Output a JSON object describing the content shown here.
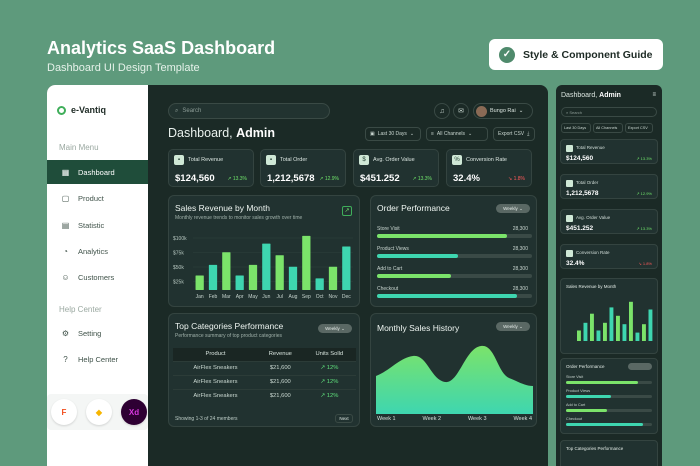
{
  "hero": {
    "title": "Analytics SaaS Dashboard",
    "subtitle": "Dashboard UI Design Template",
    "guide_button": "Style & Component Guide"
  },
  "sidebar": {
    "brand": "e-Vantiq",
    "main_menu_label": "Main Menu",
    "help_label": "Help Center",
    "items": [
      {
        "label": "Dashboard",
        "icon": "grid-icon",
        "active": true
      },
      {
        "label": "Product",
        "icon": "box-icon"
      },
      {
        "label": "Statistic",
        "icon": "chart-icon"
      },
      {
        "label": "Analytics",
        "icon": "analytics-icon"
      },
      {
        "label": "Customers",
        "icon": "user-icon"
      }
    ],
    "help_items": [
      {
        "label": "Setting",
        "icon": "gear-icon"
      },
      {
        "label": "Help Center",
        "icon": "help-icon"
      }
    ]
  },
  "header": {
    "search_placeholder": "Search",
    "user_name": "Bungo Rai",
    "title_prefix": "Dashboard,",
    "title_bold": "Admin",
    "filter_period": "Last 30 Days",
    "filter_channel": "All Channels",
    "export": "Export CSV"
  },
  "kpis": [
    {
      "label": "Total Revenue",
      "value": "$124,560",
      "delta": "↗ 13.3%",
      "up": true
    },
    {
      "label": "Total Order",
      "value": "1,212,5678",
      "delta": "↗ 12.9%",
      "up": true
    },
    {
      "label": "Avg. Order Value",
      "value": "$451.252",
      "delta": "↗ 13.3%",
      "up": true
    },
    {
      "label": "Conversion Rate",
      "value": "32.4%",
      "delta": "↘ 1.8%",
      "up": false
    }
  ],
  "sales_card": {
    "title": "Sales Revenue by Month",
    "subtitle": "Monthly revenue trends to monitor sales growth over time"
  },
  "order_card": {
    "title": "Order Performance",
    "pill": "Weekly",
    "rows": [
      {
        "label": "Store Visit",
        "value": "28,300",
        "pct": 0.84
      },
      {
        "label": "Product Views",
        "value": "28,300",
        "pct": 0.52
      },
      {
        "label": "Add to Cart",
        "value": "28,300",
        "pct": 0.48
      },
      {
        "label": "Checkout",
        "value": "28,300",
        "pct": 0.9
      }
    ]
  },
  "categories_card": {
    "title": "Top Categories Performance",
    "subtitle": "Performance summary of top product categories",
    "pill": "Weekly",
    "headers": [
      "Product",
      "Revenue",
      "Units Solld"
    ],
    "rows": [
      {
        "product": "AirFlex Sneakers",
        "revenue": "$21,600",
        "units": "↗ 12%"
      },
      {
        "product": "AirFlex Sneakers",
        "revenue": "$21,600",
        "units": "↗ 12%"
      },
      {
        "product": "AirFlex Sneakers",
        "revenue": "$21,600",
        "units": "↗ 12%"
      }
    ],
    "footer": "Showing 1-3 of 24 members",
    "next": "Next"
  },
  "monthly_card": {
    "title": "Monthly Sales History",
    "pill": "Weekly",
    "weeks": [
      "Week 1",
      "Week 2",
      "Week 3",
      "Week 4"
    ]
  },
  "mobile": {
    "title_prefix": "Dashboard,",
    "title_bold": "Admin",
    "cards": [
      {
        "label": "Total Revenue",
        "value": "$124,560"
      },
      {
        "label": "Total Order",
        "value": "1,212,5678"
      },
      {
        "label": "Avg. Order Value",
        "value": "$451.252"
      },
      {
        "label": "Conversion Rate",
        "value": "32.4%"
      }
    ],
    "sales_title": "Sales Revenue by Month",
    "order_title": "Order Performance",
    "order_rows": [
      "Store Visit",
      "Product Views",
      "Add to Cart",
      "Checkout"
    ],
    "cat_title": "Top Categories Performance"
  },
  "colors": {
    "accent": "#7be36a",
    "teal": "#3ed6b0",
    "dark": "#1b2a26",
    "danger": "#ff5a5a"
  },
  "chart_data": {
    "type": "bar",
    "title": "Sales Revenue by Month",
    "categories": [
      "Jan",
      "Feb",
      "Mar",
      "Apr",
      "May",
      "Jun",
      "Jul",
      "Aug",
      "Sep",
      "Oct",
      "Nov",
      "Dec"
    ],
    "series": [
      {
        "values": [
          15,
          26,
          39,
          15,
          26,
          48,
          36,
          24,
          56,
          12,
          24,
          45
        ]
      }
    ],
    "y_ticks": [
      "$100k",
      "$75k",
      "$50k",
      "$25k"
    ],
    "ylim": [
      0,
      60
    ]
  },
  "area_chart": {
    "type": "area",
    "x": [
      "Week 1",
      "Week 2",
      "Week 3",
      "Week 4"
    ]
  }
}
